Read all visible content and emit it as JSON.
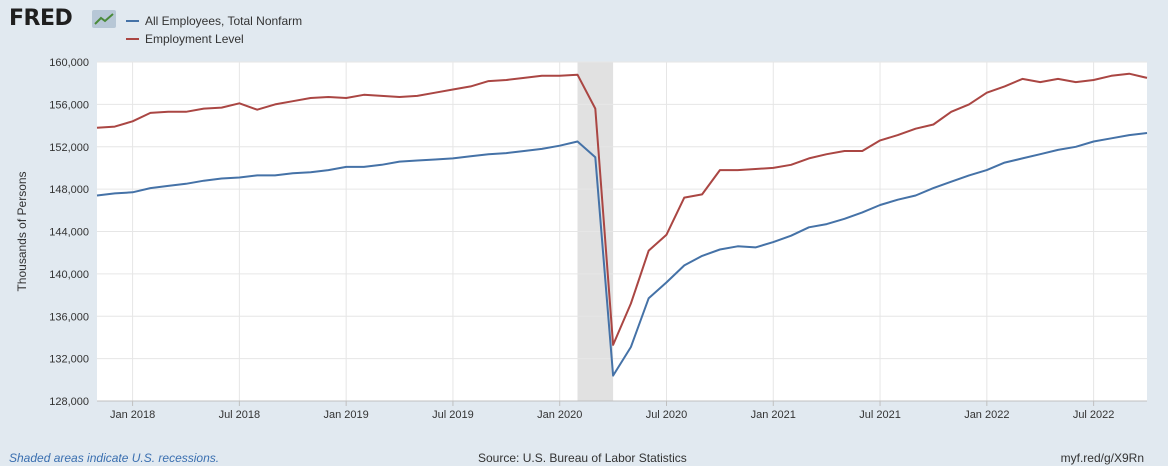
{
  "header": {
    "logo_text": "FRED",
    "logo_icon": "line-graph-icon"
  },
  "chart_data": {
    "type": "line",
    "title": "",
    "xlabel": "",
    "ylabel": "Thousands of Persons",
    "ylim": [
      128000,
      160000
    ],
    "yticks": [
      128000,
      132000,
      136000,
      140000,
      144000,
      148000,
      152000,
      156000,
      160000
    ],
    "ytick_labels": [
      "128,000",
      "132,000",
      "136,000",
      "140,000",
      "144,000",
      "148,000",
      "152,000",
      "156,000",
      "160,000"
    ],
    "xlim": [
      "2017-11",
      "2022-10"
    ],
    "xticks": [
      "2018-01",
      "2018-07",
      "2019-01",
      "2019-07",
      "2020-01",
      "2020-07",
      "2021-01",
      "2021-07",
      "2022-01",
      "2022-07"
    ],
    "xtick_labels": [
      "Jan 2018",
      "Jul 2018",
      "Jan 2019",
      "Jul 2019",
      "Jan 2020",
      "Jul 2020",
      "Jan 2021",
      "Jul 2021",
      "Jan 2022",
      "Jul 2022"
    ],
    "grid": true,
    "legend_position": "top-left",
    "recession": {
      "start": "2020-02",
      "end": "2020-04"
    },
    "x": [
      "2017-11",
      "2017-12",
      "2018-01",
      "2018-02",
      "2018-03",
      "2018-04",
      "2018-05",
      "2018-06",
      "2018-07",
      "2018-08",
      "2018-09",
      "2018-10",
      "2018-11",
      "2018-12",
      "2019-01",
      "2019-02",
      "2019-03",
      "2019-04",
      "2019-05",
      "2019-06",
      "2019-07",
      "2019-08",
      "2019-09",
      "2019-10",
      "2019-11",
      "2019-12",
      "2020-01",
      "2020-02",
      "2020-03",
      "2020-04",
      "2020-05",
      "2020-06",
      "2020-07",
      "2020-08",
      "2020-09",
      "2020-10",
      "2020-11",
      "2020-12",
      "2021-01",
      "2021-02",
      "2021-03",
      "2021-04",
      "2021-05",
      "2021-06",
      "2021-07",
      "2021-08",
      "2021-09",
      "2021-10",
      "2021-11",
      "2021-12",
      "2022-01",
      "2022-02",
      "2022-03",
      "2022-04",
      "2022-05",
      "2022-06",
      "2022-07",
      "2022-08",
      "2022-09",
      "2022-10"
    ],
    "series": [
      {
        "name": "All Employees, Total Nonfarm",
        "color": "#4572a7",
        "values": [
          147400,
          147600,
          147700,
          148100,
          148300,
          148500,
          148800,
          149000,
          149100,
          149300,
          149300,
          149500,
          149600,
          149800,
          150100,
          150100,
          150300,
          150600,
          150700,
          150800,
          150900,
          151100,
          151300,
          151400,
          151600,
          151800,
          152100,
          152500,
          151000,
          130400,
          133100,
          137700,
          139200,
          140800,
          141700,
          142300,
          142600,
          142500,
          143000,
          143600,
          144400,
          144700,
          145200,
          145800,
          146500,
          147000,
          147400,
          148100,
          148700,
          149300,
          149800,
          150500,
          150900,
          151300,
          151700,
          152000,
          152500,
          152800,
          153100,
          153300
        ]
      },
      {
        "name": "Employment Level",
        "color": "#aa4643",
        "values": [
          153800,
          153900,
          154400,
          155200,
          155300,
          155300,
          155600,
          155700,
          156100,
          155500,
          156000,
          156300,
          156600,
          156700,
          156600,
          156900,
          156800,
          156700,
          156800,
          157100,
          157400,
          157700,
          158200,
          158300,
          158500,
          158700,
          158700,
          158800,
          155600,
          133300,
          137200,
          142200,
          143700,
          147200,
          147500,
          149800,
          149800,
          149900,
          150000,
          150300,
          150900,
          151300,
          151600,
          151600,
          152600,
          153100,
          153700,
          154100,
          155300,
          156000,
          157100,
          157700,
          158400,
          158100,
          158400,
          158100,
          158300,
          158700,
          158900,
          158500
        ]
      }
    ]
  },
  "footer": {
    "note": "Shaded areas indicate U.S. recessions.",
    "source": "Source: U.S. Bureau of Labor Statistics",
    "url": "myf.red/g/X9Rn"
  }
}
